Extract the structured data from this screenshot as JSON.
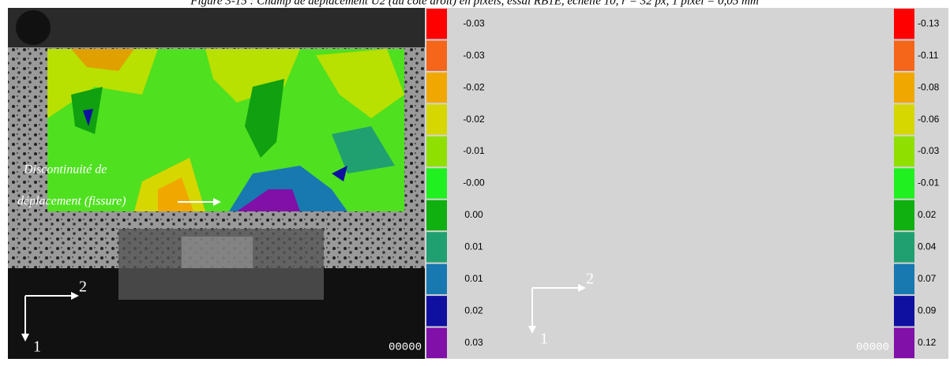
{
  "caption": "Figure 3-15 : Champ de déplacement U2 (du côté droit) en pixels, essai RB1E, échelle 10, r = 32 px, 1 pixel = 0,05 mm",
  "panels": [
    {
      "annotation_line1": "Discontinuité de",
      "annotation_line2": "déplacement (fissure)",
      "axis_1": "1",
      "axis_2": "2",
      "counter": "00000",
      "colors": [
        "#ff0000",
        "#f5661a",
        "#f0a800",
        "#d6d600",
        "#8fe000",
        "#20f020",
        "#10b010",
        "#20a070",
        "#1878b0",
        "#1010a0",
        "#8010a8"
      ],
      "colorbar_labels": [
        "-0.03",
        "-0.03",
        "-0.02",
        "-0.02",
        "-0.01",
        "-0.00",
        "0.00",
        "0.01",
        "0.01",
        "0.02",
        "0.03"
      ]
    },
    {
      "axis_1": "1",
      "axis_2": "2",
      "counter": "00000",
      "colors": [
        "#ff0000",
        "#f5661a",
        "#f0a800",
        "#d6d600",
        "#8fe000",
        "#20f020",
        "#10b010",
        "#20a070",
        "#1878b0",
        "#1010a0",
        "#8010a8"
      ],
      "colorbar_labels": [
        "-0.13",
        "-0.11",
        "-0.08",
        "-0.06",
        "-0.03",
        "-0.01",
        "0.02",
        "0.04",
        "0.07",
        "0.09",
        "0.12"
      ]
    }
  ]
}
